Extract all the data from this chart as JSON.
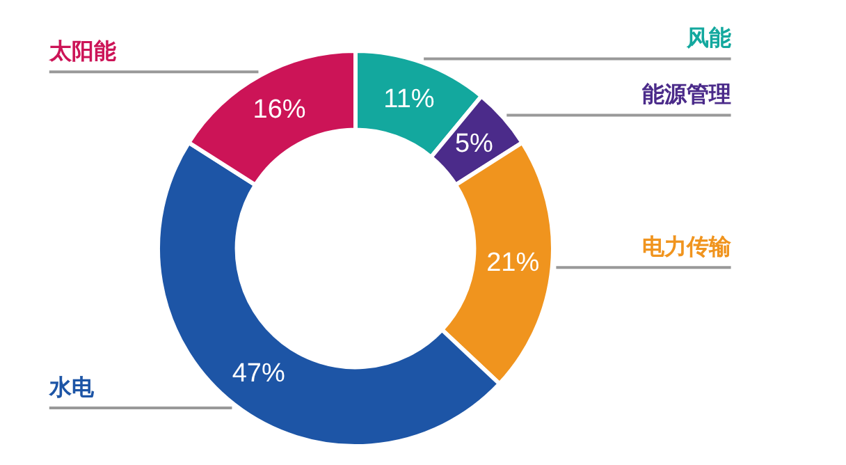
{
  "chart_data": {
    "type": "donut",
    "categories": [
      "风能",
      "能源管理",
      "电力传输",
      "水电",
      "太阳能"
    ],
    "values": [
      11,
      5,
      21,
      47,
      16
    ],
    "colors": [
      "#13a89e",
      "#4b2b8a",
      "#f0941e",
      "#1d55a6",
      "#cc1457"
    ],
    "value_labels": [
      "11%",
      "5%",
      "21%",
      "47%",
      "16%"
    ]
  }
}
